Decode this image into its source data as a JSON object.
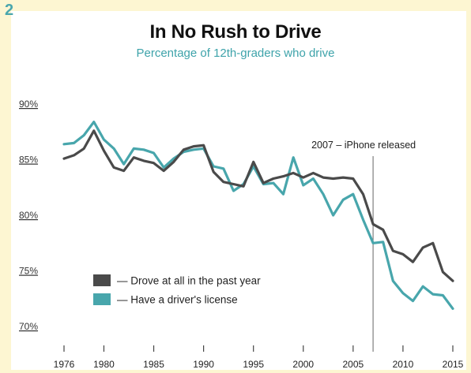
{
  "figure_number": "2",
  "chart_data": {
    "type": "line",
    "title": "In No Rush to Drive",
    "subtitle": "Percentage of 12th-graders who drive",
    "xlabel": "",
    "ylabel": "",
    "xlim": [
      1976,
      2015
    ],
    "ylim": [
      70,
      90
    ],
    "yticks": [
      90,
      85,
      80,
      75,
      70
    ],
    "ytick_labels": [
      "90%",
      "85%",
      "80%",
      "75%",
      "70%"
    ],
    "xticks": [
      1976,
      1980,
      1985,
      1990,
      1995,
      2000,
      2005,
      2010,
      2015
    ],
    "xtick_labels": [
      "1976",
      "1980",
      "1985",
      "1990",
      "1995",
      "2000",
      "2005",
      "2010",
      "2015"
    ],
    "x": [
      1976,
      1977,
      1978,
      1979,
      1980,
      1981,
      1982,
      1983,
      1984,
      1985,
      1986,
      1987,
      1988,
      1989,
      1990,
      1991,
      1992,
      1993,
      1994,
      1995,
      1996,
      1997,
      1998,
      1999,
      2000,
      2001,
      2002,
      2003,
      2004,
      2005,
      2006,
      2007,
      2008,
      2009,
      2010,
      2011,
      2012,
      2013,
      2014,
      2015
    ],
    "series": [
      {
        "name": "— Drove at all in the past year",
        "color": "#4a4a4a",
        "values": [
          85.1,
          85.4,
          86.0,
          87.6,
          85.8,
          84.3,
          84.0,
          85.2,
          84.9,
          84.7,
          84.0,
          84.8,
          85.9,
          86.2,
          86.3,
          83.9,
          83.0,
          82.8,
          82.6,
          84.8,
          82.9,
          83.3,
          83.5,
          83.8,
          83.4,
          83.8,
          83.4,
          83.3,
          83.4,
          83.3,
          81.9,
          79.2,
          78.7,
          76.8,
          76.5,
          75.8,
          77.1,
          77.5,
          74.9,
          74.1
        ]
      },
      {
        "name": "— Have a driver's license",
        "color": "#48a6ac",
        "values": [
          86.4,
          86.5,
          87.2,
          88.4,
          86.8,
          86.0,
          84.6,
          86.0,
          85.9,
          85.6,
          84.3,
          85.1,
          85.7,
          85.9,
          86.0,
          84.4,
          84.2,
          82.2,
          82.8,
          84.4,
          82.8,
          82.9,
          81.9,
          85.2,
          82.7,
          83.3,
          81.9,
          80.0,
          81.4,
          81.9,
          79.6,
          77.5,
          77.6,
          74.1,
          73.0,
          72.3,
          73.6,
          72.9,
          72.8,
          71.6
        ]
      }
    ],
    "annotations": [
      {
        "x": 2007,
        "label": "2007 – iPhone released"
      }
    ],
    "legend": {
      "position": "bottom-left"
    },
    "grid": false
  }
}
